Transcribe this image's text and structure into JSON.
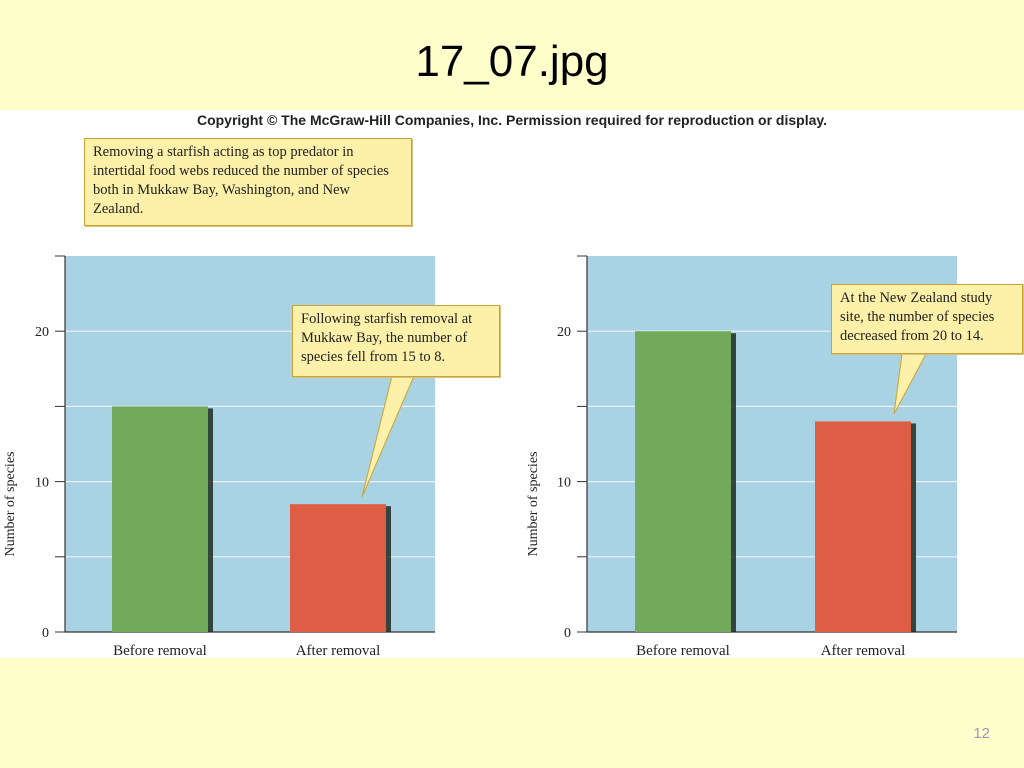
{
  "slide": {
    "title": "17_07.jpg",
    "page_number": "12"
  },
  "figure": {
    "copyright": "Copyright © The McGraw-Hill Companies, Inc. Permission required for reproduction or display.",
    "intro_callout": "Removing a starfish acting as top predator in intertidal food webs reduced the number of species both in Mukkaw Bay, Washington, and New Zealand.",
    "colors": {
      "plot_background": "#a9d3e2",
      "before_bar": "#72a95a",
      "after_bar": "#dd5d45",
      "callout_fill": "#fdf0a8"
    }
  },
  "chart_data": [
    {
      "type": "bar",
      "title": "",
      "categories": [
        "Before removal",
        "After removal"
      ],
      "values": [
        15,
        8.5
      ],
      "xlabel": "",
      "ylabel": "Number of species",
      "ylim": [
        0,
        25
      ],
      "yticks": [
        0,
        10,
        20
      ],
      "grid": true,
      "annotation": "Following starfish removal at Mukkaw Bay, the number of species fell from 15 to 8."
    },
    {
      "type": "bar",
      "title": "",
      "categories": [
        "Before removal",
        "After removal"
      ],
      "values": [
        20,
        14
      ],
      "xlabel": "",
      "ylabel": "Number of species",
      "ylim": [
        0,
        25
      ],
      "yticks": [
        0,
        10,
        20
      ],
      "grid": true,
      "annotation": "At the New Zealand study site, the number of species decreased from 20 to 14."
    }
  ]
}
